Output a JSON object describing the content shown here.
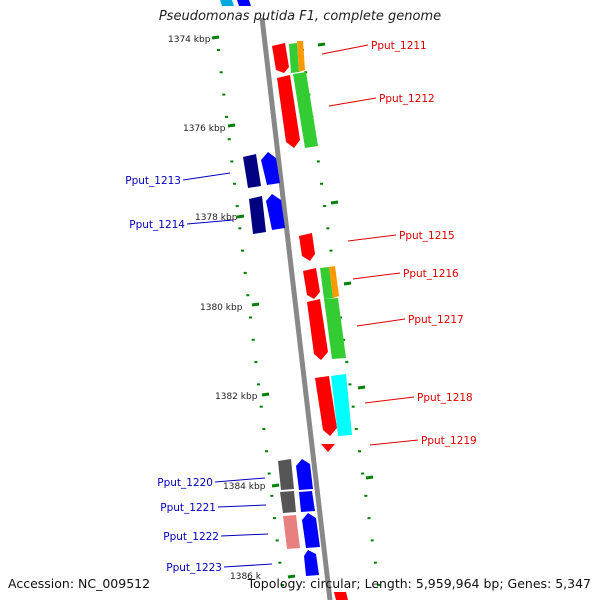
{
  "title": "Pseudomonas putida F1, complete genome",
  "accession": "Accession: NC_009512",
  "summary": "Topology: circular; Length: 5,959,964 bp; Genes: 5,347",
  "colors": {
    "red": "#ff0000",
    "green": "#33cc33",
    "orange": "#ff9900",
    "blue": "#0000ff",
    "navy": "#000080",
    "gray": "#555555",
    "pink": "#e88080",
    "cyan": "#00ffff",
    "backbone": "#888888",
    "tick": "#008000",
    "label_red": "#dd0000",
    "label_blue": "#0000bb"
  },
  "kbp_labels": [
    "1374 kbp",
    "1376 kbp",
    "1378 kbp",
    "1380 kbp",
    "1382 kbp",
    "1384 kbp",
    "1386 k"
  ],
  "genes_right": [
    "Pput_1211",
    "Pput_1212",
    "Pput_1215",
    "Pput_1216",
    "Pput_1217",
    "Pput_1218",
    "Pput_1219"
  ],
  "genes_left": [
    "Pput_1213",
    "Pput_1214",
    "Pput_1220",
    "Pput_1221",
    "Pput_1222",
    "Pput_1223"
  ]
}
